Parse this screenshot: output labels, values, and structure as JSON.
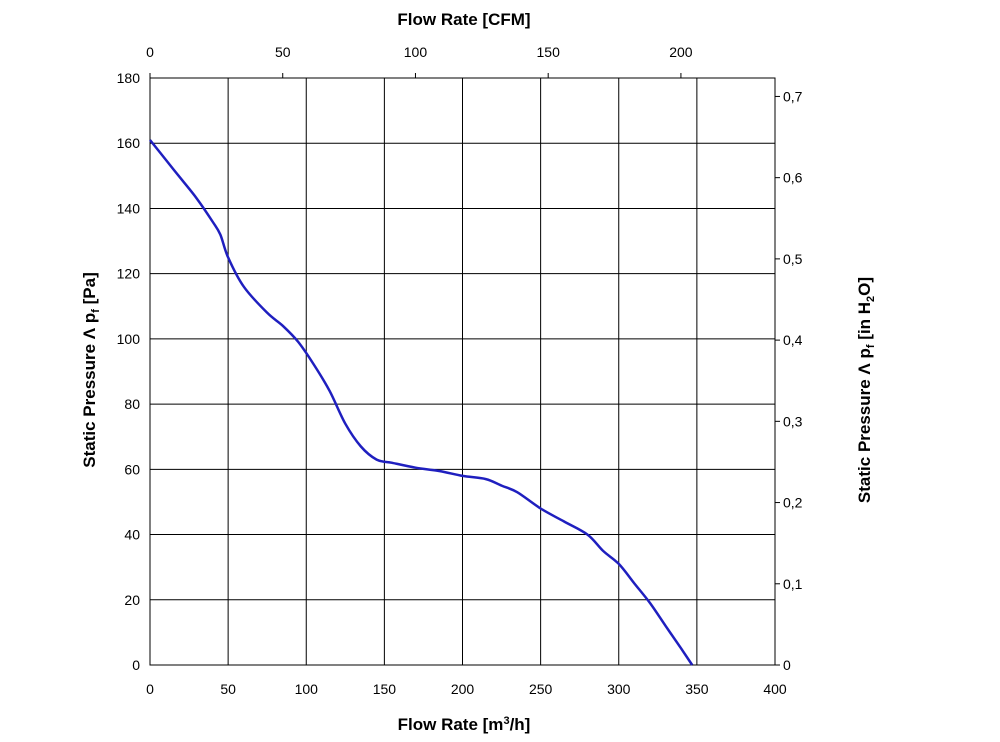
{
  "chart_data": {
    "type": "line",
    "x_top_label": "Flow Rate [CFM]",
    "x_bottom_label_main": "Flow Rate [m",
    "x_bottom_label_sup": "3",
    "x_bottom_label_end": "/h]",
    "y_left_label_main": "Static Pressure Λ p",
    "y_left_label_sub": "f",
    "y_left_label_end": " [Pa]",
    "y_right_label_main": "Static Pressure Λ p",
    "y_right_label_sub": "f",
    "y_right_label_mid": " [in H",
    "y_right_label_sub2": "2",
    "y_right_label_end": "O]",
    "x_bottom_range": [
      0,
      400
    ],
    "x_bottom_ticks": [
      "0",
      "50",
      "100",
      "150",
      "200",
      "250",
      "300",
      "350",
      "400"
    ],
    "y_left_range": [
      0,
      180
    ],
    "y_left_ticks": [
      "0",
      "20",
      "40",
      "60",
      "80",
      "100",
      "120",
      "140",
      "160",
      "180"
    ],
    "x_top_ticks": [
      "0",
      "50",
      "100",
      "150",
      "200"
    ],
    "x_top_tick_values": [
      0,
      50,
      100,
      150,
      200
    ],
    "x_top_per_bottom_unit": 0.5886,
    "y_right_ticks": [
      "0",
      "0,1",
      "0,2",
      "0,3",
      "0,4",
      "0,5",
      "0,6",
      "0,7"
    ],
    "y_right_tick_values": [
      0,
      0.1,
      0.2,
      0.3,
      0.4,
      0.5,
      0.6,
      0.7
    ],
    "y_right_per_left_unit": 0.004015,
    "grid": true,
    "line_color": "#1f1fbf",
    "series": [
      {
        "x": [
          0,
          10,
          20,
          30,
          40,
          45,
          50,
          60,
          75,
          85,
          95,
          105,
          115,
          125,
          135,
          145,
          155,
          170,
          185,
          200,
          215,
          225,
          235,
          250,
          265,
          280,
          290,
          300,
          310,
          320,
          330,
          340,
          347
        ],
        "y": [
          161,
          155,
          149,
          143,
          136,
          132,
          125,
          116,
          108,
          104,
          99,
          92,
          84,
          74,
          67,
          63,
          62,
          60.5,
          59.5,
          58,
          57,
          55,
          53,
          48,
          44,
          40,
          35,
          31,
          25,
          19,
          12,
          5,
          0
        ]
      }
    ]
  }
}
